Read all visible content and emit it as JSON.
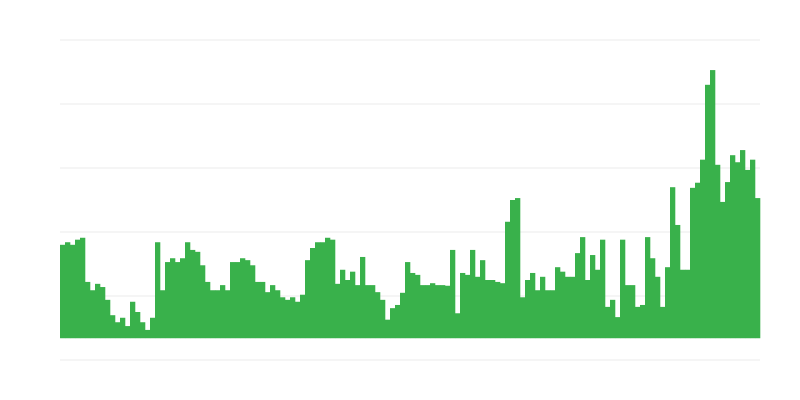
{
  "chart_data": {
    "type": "bar",
    "title": "",
    "xlabel": "",
    "ylabel": "",
    "ylim": [
      0,
      5
    ],
    "gridlines": [
      0,
      1,
      2,
      3,
      4,
      5
    ],
    "grid": true,
    "baseline": 0.34,
    "bar_color": "#39b14b",
    "grid_color": "#ebebeb",
    "values": [
      1.8,
      1.84,
      1.8,
      1.88,
      1.91,
      1.22,
      1.09,
      1.19,
      1.14,
      0.94,
      0.7,
      0.59,
      0.66,
      0.53,
      0.91,
      0.75,
      0.59,
      0.47,
      0.66,
      1.84,
      1.09,
      1.53,
      1.59,
      1.53,
      1.59,
      1.84,
      1.72,
      1.69,
      1.48,
      1.22,
      1.09,
      1.09,
      1.17,
      1.09,
      1.53,
      1.53,
      1.59,
      1.56,
      1.48,
      1.22,
      1.22,
      1.06,
      1.17,
      1.09,
      0.98,
      0.94,
      0.98,
      0.91,
      1.02,
      1.56,
      1.75,
      1.84,
      1.84,
      1.91,
      1.88,
      1.19,
      1.41,
      1.25,
      1.38,
      1.17,
      1.61,
      1.17,
      1.17,
      1.06,
      0.94,
      0.63,
      0.81,
      0.86,
      1.05,
      1.53,
      1.36,
      1.33,
      1.17,
      1.17,
      1.2,
      1.17,
      1.17,
      1.16,
      1.72,
      0.73,
      1.36,
      1.33,
      1.72,
      1.3,
      1.56,
      1.25,
      1.25,
      1.22,
      1.2,
      2.16,
      2.5,
      2.53,
      0.98,
      1.25,
      1.36,
      1.09,
      1.3,
      1.09,
      1.09,
      1.45,
      1.38,
      1.3,
      1.3,
      1.67,
      1.92,
      1.25,
      1.64,
      1.41,
      1.88,
      0.83,
      0.94,
      0.67,
      1.88,
      1.17,
      1.17,
      0.83,
      0.86,
      1.92,
      1.59,
      1.3,
      0.83,
      1.45,
      2.7,
      2.11,
      1.41,
      1.41,
      2.69,
      2.77,
      3.13,
      4.3,
      4.53,
      3.05,
      2.47,
      2.78,
      3.2,
      3.09,
      3.28,
      2.97,
      3.13,
      2.53
    ]
  }
}
